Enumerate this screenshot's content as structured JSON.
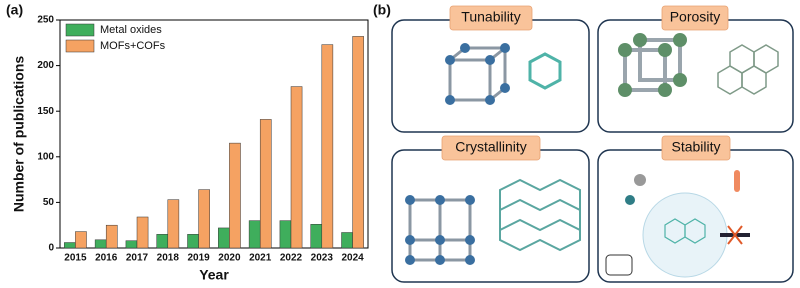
{
  "panel_labels": [
    "(a)",
    "(b)"
  ],
  "chart_data": {
    "type": "bar",
    "xlabel": "Year",
    "ylabel": "Number of publications",
    "categories": [
      "2015",
      "2016",
      "2017",
      "2018",
      "2019",
      "2020",
      "2021",
      "2022",
      "2023",
      "2024"
    ],
    "series": [
      {
        "name": "Metal oxides",
        "color": "#3fae5c",
        "values": [
          6,
          9,
          8,
          15,
          15,
          22,
          30,
          30,
          26,
          17
        ]
      },
      {
        "name": "MOFs+COFs",
        "color": "#f5a262",
        "values": [
          18,
          25,
          34,
          53,
          64,
          115,
          141,
          177,
          223,
          232
        ]
      }
    ],
    "ylim": [
      0,
      250
    ],
    "yticks": [
      0,
      50,
      100,
      150,
      200,
      250
    ],
    "legend": "upper-left"
  },
  "diagram": {
    "boxes": [
      {
        "title": "Tunability"
      },
      {
        "title": "Porosity"
      },
      {
        "title": "Crystallinity"
      },
      {
        "title": "Stability"
      }
    ]
  }
}
